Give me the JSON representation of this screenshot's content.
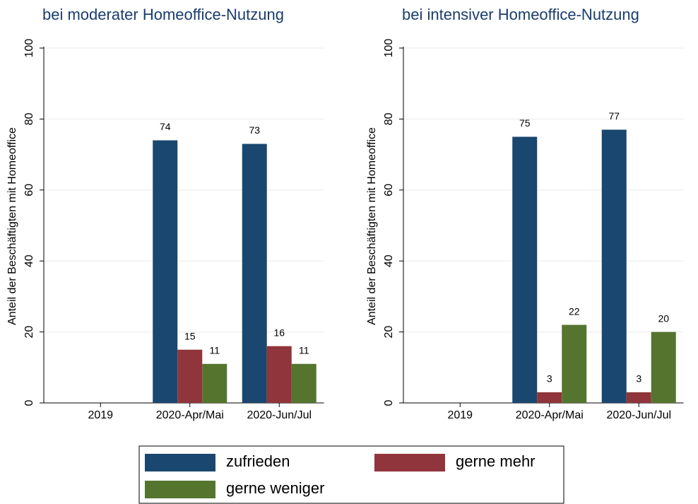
{
  "chart_data": [
    {
      "type": "bar",
      "title": "bei moderater Homeoffice-Nutzung",
      "ylabel": "Anteil der Beschäftigten mit Homeoffice",
      "categories": [
        "2019",
        "2020-Apr/Mai",
        "2020-Jun/Jul"
      ],
      "series": [
        {
          "name": "zufrieden",
          "color": "#1a476f",
          "values": [
            null,
            74,
            73
          ]
        },
        {
          "name": "gerne mehr",
          "color": "#90353b",
          "values": [
            null,
            15,
            16
          ]
        },
        {
          "name": "gerne weniger",
          "color": "#55752f",
          "values": [
            null,
            11,
            11
          ]
        }
      ],
      "ylim": [
        0,
        100
      ],
      "yticks": [
        0,
        20,
        40,
        60,
        80,
        100
      ],
      "grid": true
    },
    {
      "type": "bar",
      "title": "bei intensiver Homeoffice-Nutzung",
      "ylabel": "Anteil der Beschäftigten mit Homeoffice",
      "categories": [
        "2019",
        "2020-Apr/Mai",
        "2020-Jun/Jul"
      ],
      "series": [
        {
          "color": "#1a476f",
          "values": [
            null,
            75,
            77
          ]
        },
        {
          "color": "#90353b",
          "values": [
            null,
            3,
            3
          ]
        },
        {
          "color": "#55752f",
          "values": [
            null,
            22,
            20
          ]
        }
      ],
      "ylim": [
        0,
        100
      ],
      "yticks": [
        0,
        20,
        40,
        60,
        80,
        100
      ],
      "grid": true
    }
  ]
}
